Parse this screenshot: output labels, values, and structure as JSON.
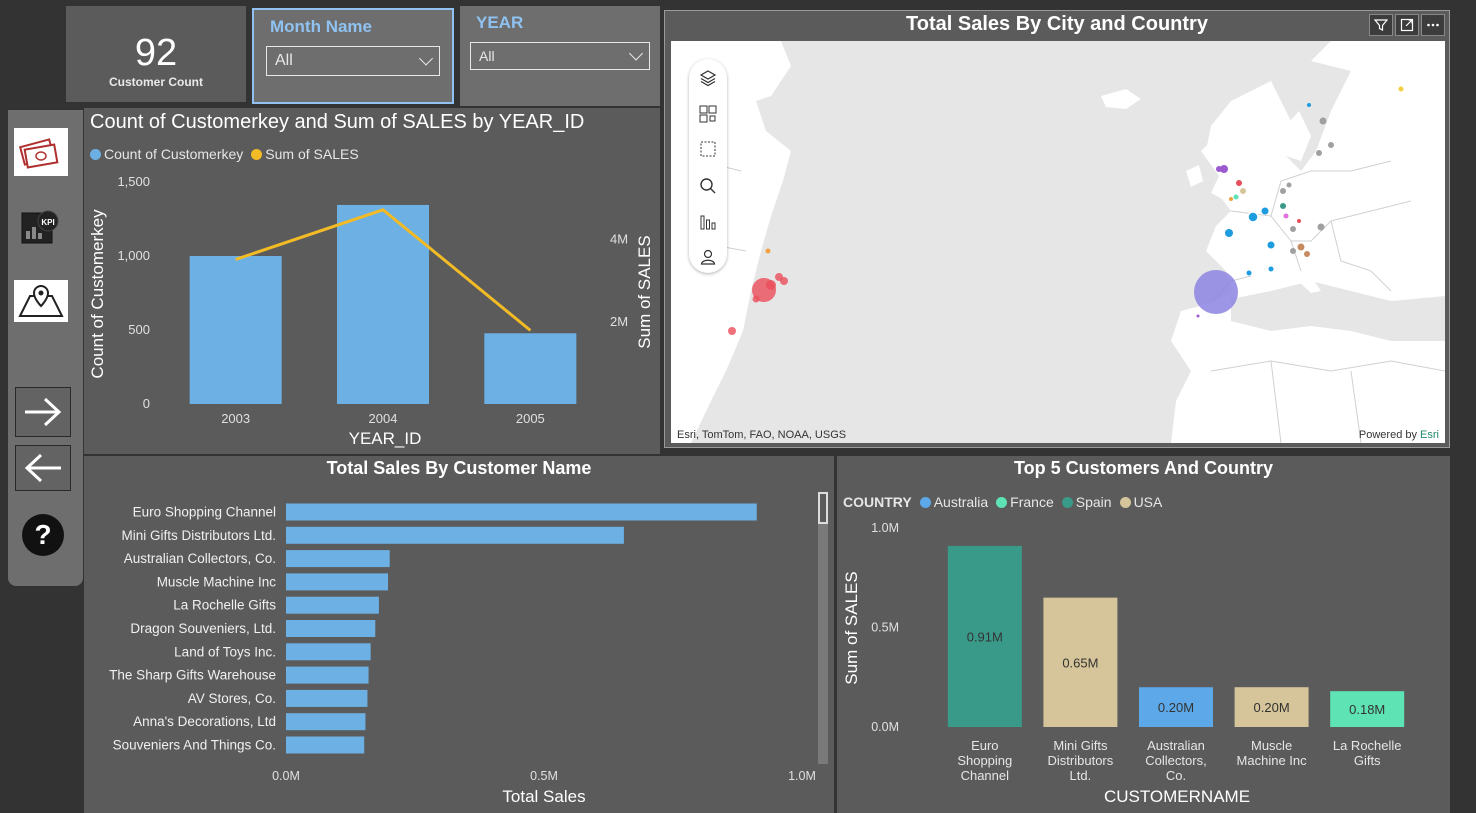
{
  "card": {
    "value": "92",
    "label": "Customer Count"
  },
  "slicers": {
    "month": {
      "title": "Month Name",
      "value": "All"
    },
    "year": {
      "title": "YEAR",
      "value": "All"
    }
  },
  "sidebar": {
    "items": [
      {
        "name": "sales-icon"
      },
      {
        "name": "kpi-icon"
      },
      {
        "name": "map-pin-icon"
      },
      {
        "name": "arrow-right-icon"
      },
      {
        "name": "arrow-left-icon"
      },
      {
        "name": "help-icon"
      }
    ]
  },
  "colors": {
    "bar_blue": "#6cb0e4",
    "line_yellow": "#f2bb26",
    "australia": "#5ca8e8",
    "france": "#5ee3b4",
    "spain": "#3a9a8a",
    "usa": "#d6c59a"
  },
  "combo": {
    "chart_data": {
      "type": "bar+line",
      "title": "Count of Customerkey and Sum of SALES by YEAR_ID",
      "legend": [
        "Count of Customerkey",
        "Sum of SALES"
      ],
      "categories": [
        "2003",
        "2004",
        "2005"
      ],
      "series": [
        {
          "name": "Count of Customerkey",
          "type": "bar",
          "axis": "left",
          "values": [
            1000,
            1345,
            478
          ]
        },
        {
          "name": "Sum of SALES",
          "type": "line",
          "axis": "right",
          "values": [
            3516979,
            4724163,
            1791487
          ]
        }
      ],
      "xlabel": "YEAR_ID",
      "ylabel": "Count of Customerkey",
      "y2label": "Sum of SALES",
      "ylim": [
        0,
        1500
      ],
      "yticks": [
        "0",
        "500",
        "1,000",
        "1,500"
      ],
      "y2lim": [
        0,
        5400000
      ],
      "y2ticks": [
        "2M",
        "4M"
      ],
      "legend_position": "top-left"
    }
  },
  "map": {
    "title": "Total Sales By City and Country",
    "attribution": "Esri, TomTom, FAO, NOAA, USGS",
    "powered_by": "Powered by",
    "powered_brand": "Esri"
  },
  "customers": {
    "chart_data": {
      "type": "bar",
      "orientation": "horizontal",
      "title": "Total Sales By Customer Name",
      "categories": [
        "Euro Shopping Channel",
        "Mini Gifts Distributors Ltd.",
        "Australian Collectors, Co.",
        "Muscle Machine Inc",
        "La Rochelle Gifts",
        "Dragon Souveniers, Ltd.",
        "Land of Toys Inc.",
        "The Sharp Gifts Warehouse",
        "AV Stores, Co.",
        "Anna's Decorations, Ltd",
        "Souveniers And Things Co."
      ],
      "values": [
        912294,
        654858,
        200995,
        197737,
        180125,
        172990,
        164069,
        160010,
        157807,
        153996,
        151571
      ],
      "xlabel": "Total Sales",
      "xlim": [
        0,
        1000000
      ],
      "xticks": [
        "0.0M",
        "0.5M",
        "1.0M"
      ]
    }
  },
  "top5": {
    "chart_data": {
      "type": "bar",
      "title": "Top 5 Customers And Country",
      "legend_title": "COUNTRY",
      "legend": [
        "Australia",
        "France",
        "Spain",
        "USA"
      ],
      "categories": [
        [
          "Euro",
          "Shopping",
          "Channel"
        ],
        [
          "Mini Gifts",
          "Distributors",
          "Ltd."
        ],
        [
          "Australian",
          "Collectors,",
          "Co."
        ],
        [
          "Muscle",
          "Machine Inc"
        ],
        [
          "La Rochelle",
          "Gifts"
        ]
      ],
      "values": [
        0.91,
        0.65,
        0.2,
        0.2,
        0.18
      ],
      "data_labels": [
        "0.91M",
        "0.65M",
        "0.20M",
        "0.20M",
        "0.18M"
      ],
      "countries": [
        "Spain",
        "USA",
        "Australia",
        "USA",
        "France"
      ],
      "xlabel": "CUSTOMERNAME",
      "ylabel": "Sum of SALES",
      "ylim": [
        0,
        1.0
      ],
      "yticks": [
        "0.0M",
        "0.5M",
        "1.0M"
      ]
    }
  }
}
